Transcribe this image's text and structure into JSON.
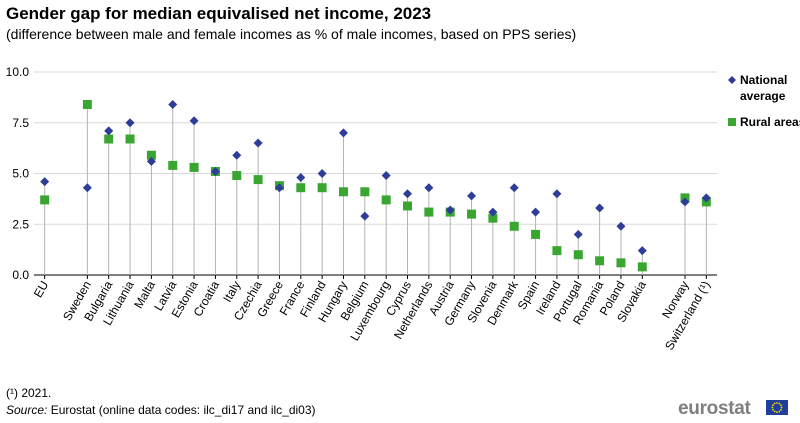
{
  "chart_data": {
    "type": "scatter",
    "title": "Gender gap for median equivalised net income, 2023",
    "subtitle": "(difference between male and female incomes as % of male incomes, based on PPS series)",
    "ylim": [
      0,
      10
    ],
    "yticks": [
      "0.0",
      "2.5",
      "5.0",
      "7.5",
      "10.0"
    ],
    "grid": true,
    "legend_position": "right",
    "categories": [
      "EU",
      "",
      "Sweden",
      "Bulgaria",
      "Lithuania",
      "Malta",
      "Latvia",
      "Estonia",
      "Croatia",
      "Italy",
      "Czechia",
      "Greece",
      "France",
      "Finland",
      "Hungary",
      "Belgium",
      "Luxembourg",
      "Cyprus",
      "Netherlands",
      "Austria",
      "Germany",
      "Slovenia",
      "Denmark",
      "Spain",
      "Ireland",
      "Portugal",
      "Romania",
      "Poland",
      "Slovakia",
      "",
      "Norway",
      "Switzerland (¹)"
    ],
    "series": [
      {
        "name": "National average",
        "color": "#2e3d97",
        "marker": "diamond",
        "values": [
          4.6,
          null,
          4.3,
          7.1,
          7.5,
          5.6,
          8.4,
          7.6,
          5.1,
          5.9,
          6.5,
          4.3,
          4.8,
          5.0,
          7.0,
          2.9,
          4.9,
          4.0,
          4.3,
          3.2,
          3.9,
          3.1,
          4.3,
          3.1,
          4.0,
          2.0,
          3.3,
          2.4,
          1.2,
          null,
          3.6,
          3.8
        ]
      },
      {
        "name": "Rural areas",
        "color": "#3aa632",
        "marker": "square",
        "values": [
          3.7,
          null,
          8.4,
          6.7,
          6.7,
          5.9,
          5.4,
          5.3,
          5.1,
          4.9,
          4.7,
          4.4,
          4.3,
          4.3,
          4.1,
          4.1,
          3.7,
          3.4,
          3.1,
          3.1,
          3.0,
          2.8,
          2.4,
          2.0,
          1.2,
          1.0,
          0.7,
          0.6,
          0.4,
          null,
          3.8,
          3.6
        ]
      }
    ]
  },
  "footnote": "(¹) 2021.",
  "source": {
    "label": "Source:",
    "text": " Eurostat (online data codes: ilc_di17 and ilc_di03)"
  },
  "logo": {
    "text": "eurostat",
    "flag_icon": "eu-flag-icon"
  }
}
